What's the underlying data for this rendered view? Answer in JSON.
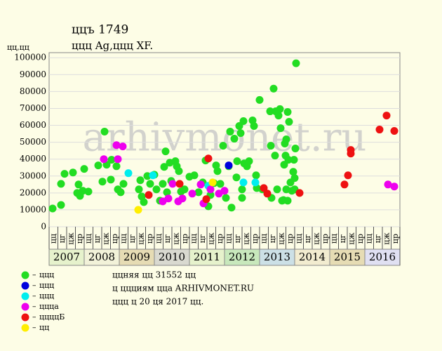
{
  "chart_data": {
    "type": "scatter",
    "title": "ццъ 1749",
    "subtitle": "ццц Ag,ццц XF.",
    "y_label": "цц,цц",
    "watermark": "arhivmonet.ru",
    "xlim": [
      2007,
      2017
    ],
    "ylim": [
      0,
      103000
    ],
    "yticks": [
      0,
      10000,
      20000,
      30000,
      40000,
      50000,
      60000,
      70000,
      80000,
      90000,
      100000
    ],
    "grid": true,
    "years": [
      "2007",
      "2008",
      "2009",
      "2010",
      "2011",
      "2012",
      "2013",
      "2014",
      "2015",
      "2016"
    ],
    "year_colors": [
      "#e6f2cc",
      "#f2f2d9",
      "#e6dcb4",
      "#d9d9d0",
      "#e6f2cc",
      "#c8e8bc",
      "#cce0e6",
      "#f2ecd0",
      "#e6dcb4",
      "#e0e0f2"
    ],
    "quarter_labels": [
      "цц",
      "цг",
      "цж",
      "цр"
    ],
    "series": [
      {
        "name": "ццц",
        "color": "#22dd22",
        "x": [
          2007.1,
          2007.34,
          2007.34,
          2007.44,
          2007.68,
          2007.8,
          2007.84,
          2007.88,
          2007.96,
          2008.0,
          2008.12,
          2008.4,
          2008.52,
          2008.58,
          2008.64,
          2008.76,
          2008.78,
          2008.92,
          2008.96,
          2009.04,
          2009.12,
          2009.56,
          2009.6,
          2009.64,
          2009.7,
          2009.8,
          2009.88,
          2010.0,
          2010.06,
          2010.16,
          2010.24,
          2010.28,
          2010.32,
          2010.36,
          2010.44,
          2010.48,
          2010.6,
          2010.64,
          2010.7,
          2010.76,
          2010.86,
          2011.0,
          2011.14,
          2011.26,
          2011.38,
          2011.46,
          2011.54,
          2011.6,
          2011.7,
          2011.76,
          2011.8,
          2011.88,
          2011.96,
          2012.04,
          2012.12,
          2012.16,
          2012.2,
          2012.28,
          2012.34,
          2012.36,
          2012.42,
          2012.46,
          2012.5,
          2012.5,
          2012.54,
          2012.56,
          2012.64,
          2012.7,
          2012.8,
          2012.84,
          2012.9,
          2012.92,
          2013.0,
          2013.08,
          2013.3,
          2013.32,
          2013.34,
          2013.4,
          2013.44,
          2013.46,
          2013.5,
          2013.54,
          2013.58,
          2013.6,
          2013.64,
          2013.68,
          2013.7,
          2013.72,
          2013.74,
          2013.76,
          2013.76,
          2013.8,
          2013.82,
          2013.84,
          2013.88,
          2013.92,
          2013.96,
          2013.98,
          2014.0,
          2014.02,
          2014.04,
          2014.0,
          2013.8
        ],
        "values": [
          10800,
          12900,
          25400,
          31300,
          32100,
          20000,
          25000,
          18300,
          21300,
          34200,
          20800,
          36300,
          26700,
          56300,
          36700,
          27900,
          39600,
          35800,
          22100,
          20400,
          25400,
          22100,
          27500,
          17900,
          14600,
          30000,
          25400,
          30800,
          22100,
          15400,
          25400,
          35400,
          44600,
          20400,
          37900,
          27100,
          38800,
          35800,
          32900,
          20800,
          22100,
          29600,
          30400,
          20400,
          26200,
          39200,
          12100,
          18800,
          25800,
          36300,
          32900,
          25400,
          47900,
          17100,
          35800,
          56300,
          11300,
          52100,
          29200,
          38800,
          59600,
          55400,
          22100,
          17100,
          62500,
          37500,
          35800,
          38800,
          62900,
          59600,
          30400,
          22900,
          75000,
          22100,
          68300,
          47900,
          17100,
          81700,
          42100,
          68300,
          22100,
          65800,
          69600,
          58300,
          15400,
          15800,
          36700,
          49200,
          42100,
          51700,
          22100,
          67900,
          39600,
          62100,
          26200,
          21300,
          32500,
          39600,
          28800,
          46300,
          96700,
          22100,
          15400
        ]
      },
      {
        "name": "ццц",
        "color": "#0000dd",
        "x": [
          2012.12
        ],
        "values": [
          36300
        ]
      },
      {
        "name": "ццц",
        "color": "#00eeee",
        "x": [
          2009.26,
          2009.96,
          2012.54,
          2012.88,
          2011.54
        ],
        "values": [
          31700,
          30400,
          26200,
          26200,
          24200
        ]
      },
      {
        "name": "цццa",
        "color": "#ee00ee",
        "x": [
          2008.56,
          2008.92,
          2008.96,
          2009.1,
          2010.24,
          2010.4,
          2010.52,
          2010.68,
          2010.8,
          2011.08,
          2011.32,
          2011.4,
          2011.6,
          2011.84,
          2012.0,
          2016.66,
          2016.84
        ],
        "values": [
          40000,
          48300,
          40000,
          47500,
          15000,
          16700,
          25400,
          15000,
          16700,
          19600,
          25000,
          13800,
          22100,
          19600,
          21300,
          25000,
          23800
        ]
      },
      {
        "name": "ццццБ",
        "color": "#ee1111",
        "x": [
          2009.84,
          2010.72,
          2011.48,
          2011.54,
          2013.12,
          2013.22,
          2014.14,
          2015.42,
          2015.52,
          2015.6,
          2015.6,
          2016.42,
          2016.62,
          2016.84
        ],
        "values": [
          18800,
          25400,
          16300,
          40400,
          22900,
          19600,
          20000,
          25000,
          30400,
          45400,
          43300,
          57500,
          65800,
          56700
        ]
      },
      {
        "name": "цц",
        "color": "#ffee00",
        "x": [
          2009.54,
          2011.66
        ],
        "values": [
          10000,
          26200
        ]
      }
    ],
    "notes": [
      "ццняя цц 31552 цц",
      "ц ццциям цца ARHIVMONET.RU",
      "ццц ц 20 ця 2017 цц."
    ]
  }
}
